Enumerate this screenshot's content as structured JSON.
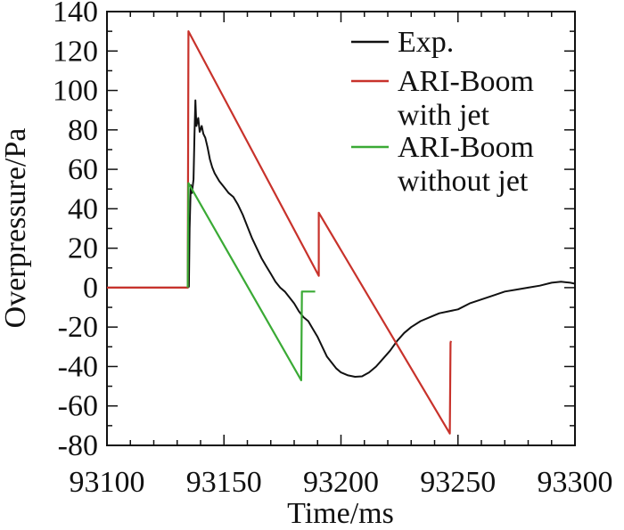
{
  "chart_data": {
    "type": "line",
    "xlabel": "Time/ms",
    "ylabel": "Overpressure/Pa",
    "xlim": [
      93100,
      93300
    ],
    "ylim": [
      -80,
      140
    ],
    "xticks": [
      93100,
      93150,
      93200,
      93250,
      93300
    ],
    "yticks": [
      -80,
      -60,
      -40,
      -20,
      0,
      20,
      40,
      60,
      80,
      100,
      120,
      140
    ],
    "legend_position": "top-right",
    "series": [
      {
        "name": "Exp.",
        "color": "#111111",
        "points": [
          [
            93100,
            0
          ],
          [
            93130,
            0
          ],
          [
            93134.5,
            0
          ],
          [
            93135,
            0.5
          ],
          [
            93135.3,
            30
          ],
          [
            93135.8,
            52
          ],
          [
            93136.3,
            48
          ],
          [
            93137,
            55
          ],
          [
            93137.4,
            78
          ],
          [
            93137.8,
            95
          ],
          [
            93138.2,
            82
          ],
          [
            93139,
            86
          ],
          [
            93139.6,
            79
          ],
          [
            93140.5,
            82
          ],
          [
            93141.2,
            78
          ],
          [
            93142,
            76
          ],
          [
            93143,
            71
          ],
          [
            93144,
            65
          ],
          [
            93145,
            61
          ],
          [
            93146,
            58
          ],
          [
            93148,
            54
          ],
          [
            93150,
            51
          ],
          [
            93152,
            48
          ],
          [
            93154,
            46
          ],
          [
            93156,
            42
          ],
          [
            93158,
            37
          ],
          [
            93160,
            31
          ],
          [
            93162,
            25
          ],
          [
            93164,
            20
          ],
          [
            93166,
            15
          ],
          [
            93168,
            11
          ],
          [
            93170,
            7
          ],
          [
            93172,
            3
          ],
          [
            93174,
            0
          ],
          [
            93176,
            -2
          ],
          [
            93178,
            -5
          ],
          [
            93180,
            -8
          ],
          [
            93182,
            -12
          ],
          [
            93184,
            -15
          ],
          [
            93186,
            -17
          ],
          [
            93188,
            -21
          ],
          [
            93190,
            -25
          ],
          [
            93192,
            -30
          ],
          [
            93194,
            -35
          ],
          [
            93196,
            -38
          ],
          [
            93198,
            -41
          ],
          [
            93200,
            -43
          ],
          [
            93203,
            -44.5
          ],
          [
            93206,
            -45.2
          ],
          [
            93209,
            -45
          ],
          [
            93212,
            -43
          ],
          [
            93215,
            -40
          ],
          [
            93218,
            -36
          ],
          [
            93221,
            -32
          ],
          [
            93224,
            -27
          ],
          [
            93227,
            -23
          ],
          [
            93230,
            -20
          ],
          [
            93234,
            -17
          ],
          [
            93238,
            -15
          ],
          [
            93242,
            -13
          ],
          [
            93246,
            -12
          ],
          [
            93250,
            -11
          ],
          [
            93255,
            -8
          ],
          [
            93260,
            -6
          ],
          [
            93265,
            -4
          ],
          [
            93270,
            -2
          ],
          [
            93275,
            -1
          ],
          [
            93280,
            0
          ],
          [
            93285,
            1
          ],
          [
            93290,
            2.5
          ],
          [
            93294,
            3
          ],
          [
            93298,
            2.5
          ],
          [
            93300,
            2
          ]
        ]
      },
      {
        "name": "ARI-Boom with jet",
        "color": "#c8322b",
        "points": [
          [
            93100,
            0
          ],
          [
            93134.5,
            0
          ],
          [
            93134.8,
            130
          ],
          [
            93190.5,
            6
          ],
          [
            93190.5,
            38
          ],
          [
            93246.5,
            -74
          ],
          [
            93246.8,
            -28
          ],
          [
            93247,
            -27
          ]
        ]
      },
      {
        "name": "ARI-Boom without jet",
        "color": "#3aaa35",
        "points": [
          [
            93134.5,
            0
          ],
          [
            93134.8,
            53
          ],
          [
            93183,
            -47
          ],
          [
            93183.3,
            -2
          ],
          [
            93189,
            -2
          ]
        ]
      }
    ]
  }
}
